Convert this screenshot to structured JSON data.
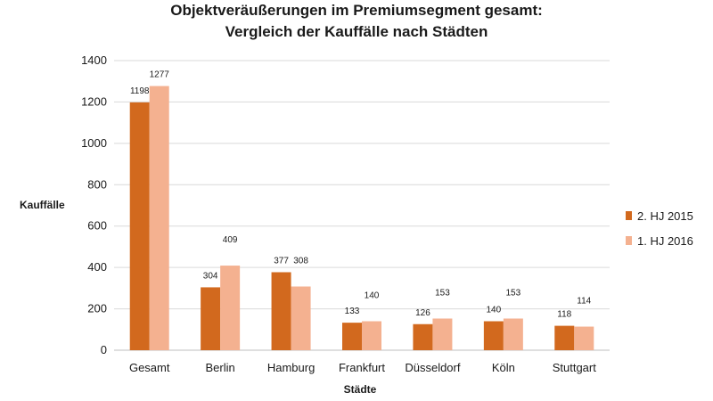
{
  "chart_data": {
    "type": "bar",
    "title": [
      "Objektveräußerungen im Premiumsegment gesamt:",
      "Vergleich der Kauffälle nach Städten"
    ],
    "xlabel": "Städte",
    "ylabel": "Kauffälle",
    "categories": [
      "Gesamt",
      "Berlin",
      "Hamburg",
      "Frankfurt",
      "Düsseldorf",
      "Köln",
      "Stuttgart"
    ],
    "series": [
      {
        "name": "2. HJ 2015",
        "color": "#d2691e",
        "values": [
          1198,
          304,
          377,
          133,
          126,
          140,
          118
        ]
      },
      {
        "name": "1. HJ 2016",
        "color": "#f4b190",
        "values": [
          1277,
          409,
          308,
          140,
          153,
          153,
          114
        ]
      }
    ],
    "ylim": [
      0,
      1400
    ],
    "yticks": [
      0,
      200,
      400,
      600,
      800,
      1000,
      1200,
      1400
    ],
    "grid": true,
    "legend": "right"
  }
}
